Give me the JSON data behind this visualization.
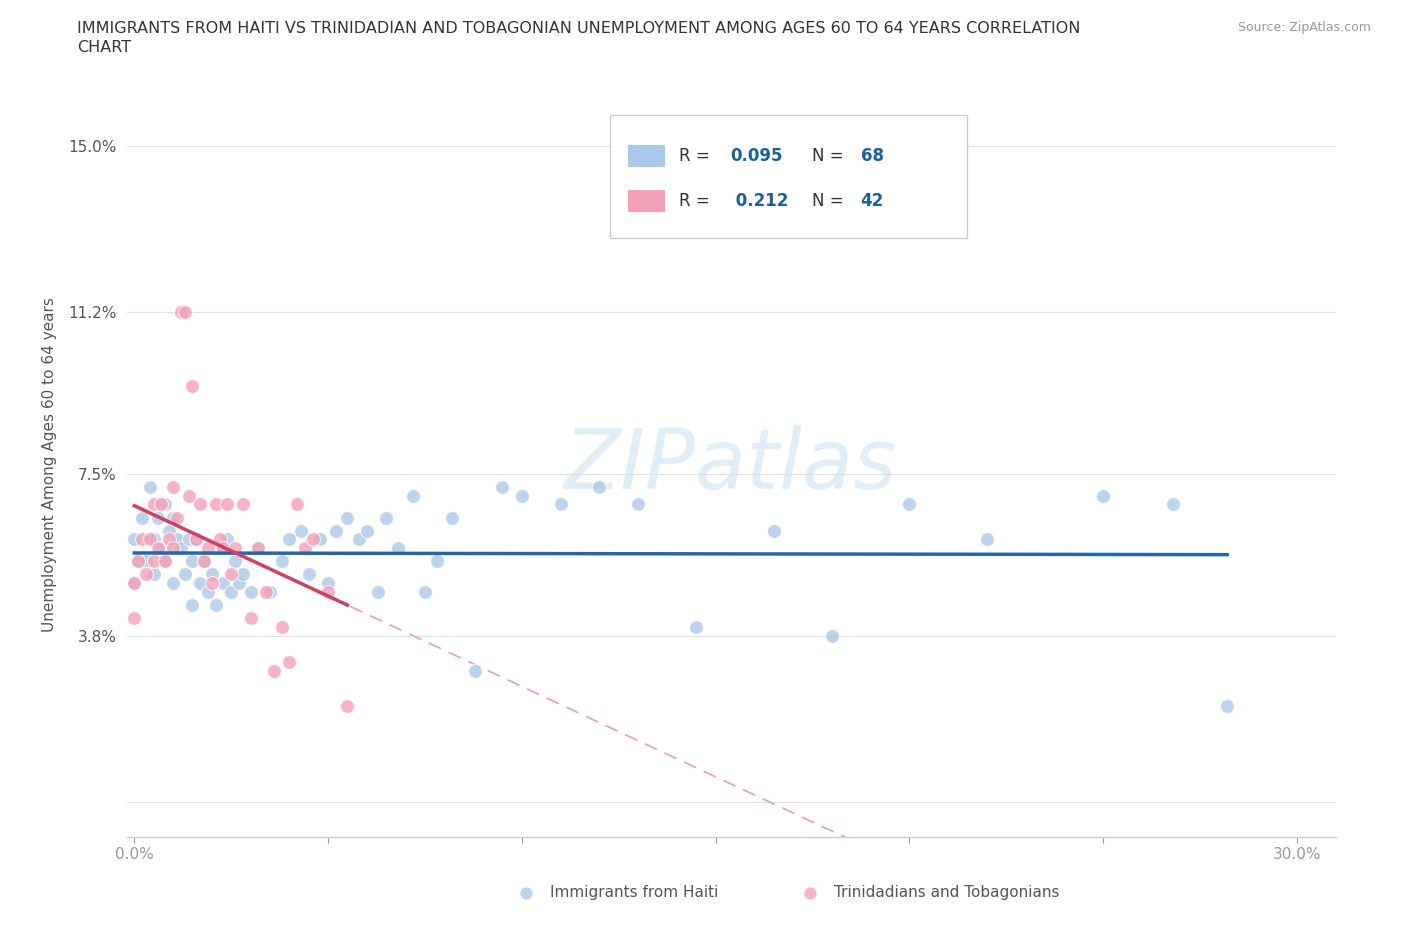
{
  "title_line1": "IMMIGRANTS FROM HAITI VS TRINIDADIAN AND TOBAGONIAN UNEMPLOYMENT AMONG AGES 60 TO 64 YEARS CORRELATION",
  "title_line2": "CHART",
  "source": "Source: ZipAtlas.com",
  "ylabel": "Unemployment Among Ages 60 to 64 years",
  "xlim": [
    -0.002,
    0.31
  ],
  "ylim": [
    -0.008,
    0.162
  ],
  "xtick_positions": [
    0.0,
    0.05,
    0.1,
    0.15,
    0.2,
    0.25,
    0.3
  ],
  "xticklabels": [
    "0.0%",
    "",
    "",
    "",
    "",
    "",
    "30.0%"
  ],
  "ytick_positions": [
    0.0,
    0.038,
    0.075,
    0.112,
    0.15
  ],
  "yticklabels": [
    "",
    "3.8%",
    "7.5%",
    "11.2%",
    "15.0%"
  ],
  "haiti_dot_color": "#aac8e8",
  "tt_dot_color": "#f4a0b8",
  "haiti_line_color": "#2266b0",
  "tt_line_color": "#d04060",
  "label_color": "#1a5fa0",
  "R_haiti": "0.095",
  "N_haiti": "68",
  "R_tt": "0.212",
  "N_tt": "42",
  "haiti_scatter_x": [
    0.0,
    0.0,
    0.001,
    0.002,
    0.003,
    0.004,
    0.005,
    0.005,
    0.006,
    0.007,
    0.008,
    0.008,
    0.009,
    0.01,
    0.01,
    0.011,
    0.012,
    0.013,
    0.014,
    0.015,
    0.015,
    0.016,
    0.017,
    0.018,
    0.019,
    0.02,
    0.021,
    0.022,
    0.023,
    0.024,
    0.025,
    0.026,
    0.027,
    0.028,
    0.03,
    0.032,
    0.035,
    0.038,
    0.04,
    0.043,
    0.045,
    0.048,
    0.05,
    0.052,
    0.055,
    0.058,
    0.06,
    0.063,
    0.065,
    0.068,
    0.072,
    0.075,
    0.078,
    0.082,
    0.088,
    0.095,
    0.1,
    0.11,
    0.12,
    0.13,
    0.145,
    0.165,
    0.18,
    0.2,
    0.22,
    0.25,
    0.268,
    0.282
  ],
  "haiti_scatter_y": [
    0.06,
    0.05,
    0.055,
    0.065,
    0.055,
    0.072,
    0.06,
    0.052,
    0.065,
    0.058,
    0.068,
    0.055,
    0.062,
    0.05,
    0.065,
    0.06,
    0.058,
    0.052,
    0.06,
    0.055,
    0.045,
    0.06,
    0.05,
    0.055,
    0.048,
    0.052,
    0.045,
    0.058,
    0.05,
    0.06,
    0.048,
    0.055,
    0.05,
    0.052,
    0.048,
    0.058,
    0.048,
    0.055,
    0.06,
    0.062,
    0.052,
    0.06,
    0.05,
    0.062,
    0.065,
    0.06,
    0.062,
    0.048,
    0.065,
    0.058,
    0.07,
    0.048,
    0.055,
    0.065,
    0.03,
    0.072,
    0.07,
    0.068,
    0.072,
    0.068,
    0.04,
    0.062,
    0.038,
    0.068,
    0.06,
    0.07,
    0.068,
    0.022
  ],
  "tt_scatter_x": [
    0.0,
    0.0,
    0.001,
    0.002,
    0.003,
    0.004,
    0.005,
    0.005,
    0.006,
    0.007,
    0.008,
    0.009,
    0.01,
    0.01,
    0.011,
    0.012,
    0.013,
    0.014,
    0.015,
    0.016,
    0.017,
    0.018,
    0.019,
    0.02,
    0.021,
    0.022,
    0.023,
    0.024,
    0.025,
    0.026,
    0.028,
    0.03,
    0.032,
    0.034,
    0.036,
    0.038,
    0.04,
    0.042,
    0.044,
    0.046,
    0.05,
    0.055
  ],
  "tt_scatter_y": [
    0.05,
    0.042,
    0.055,
    0.06,
    0.052,
    0.06,
    0.068,
    0.055,
    0.058,
    0.068,
    0.055,
    0.06,
    0.072,
    0.058,
    0.065,
    0.112,
    0.112,
    0.07,
    0.095,
    0.06,
    0.068,
    0.055,
    0.058,
    0.05,
    0.068,
    0.06,
    0.058,
    0.068,
    0.052,
    0.058,
    0.068,
    0.042,
    0.058,
    0.048,
    0.03,
    0.04,
    0.032,
    0.068,
    0.058,
    0.06,
    0.048,
    0.022
  ]
}
